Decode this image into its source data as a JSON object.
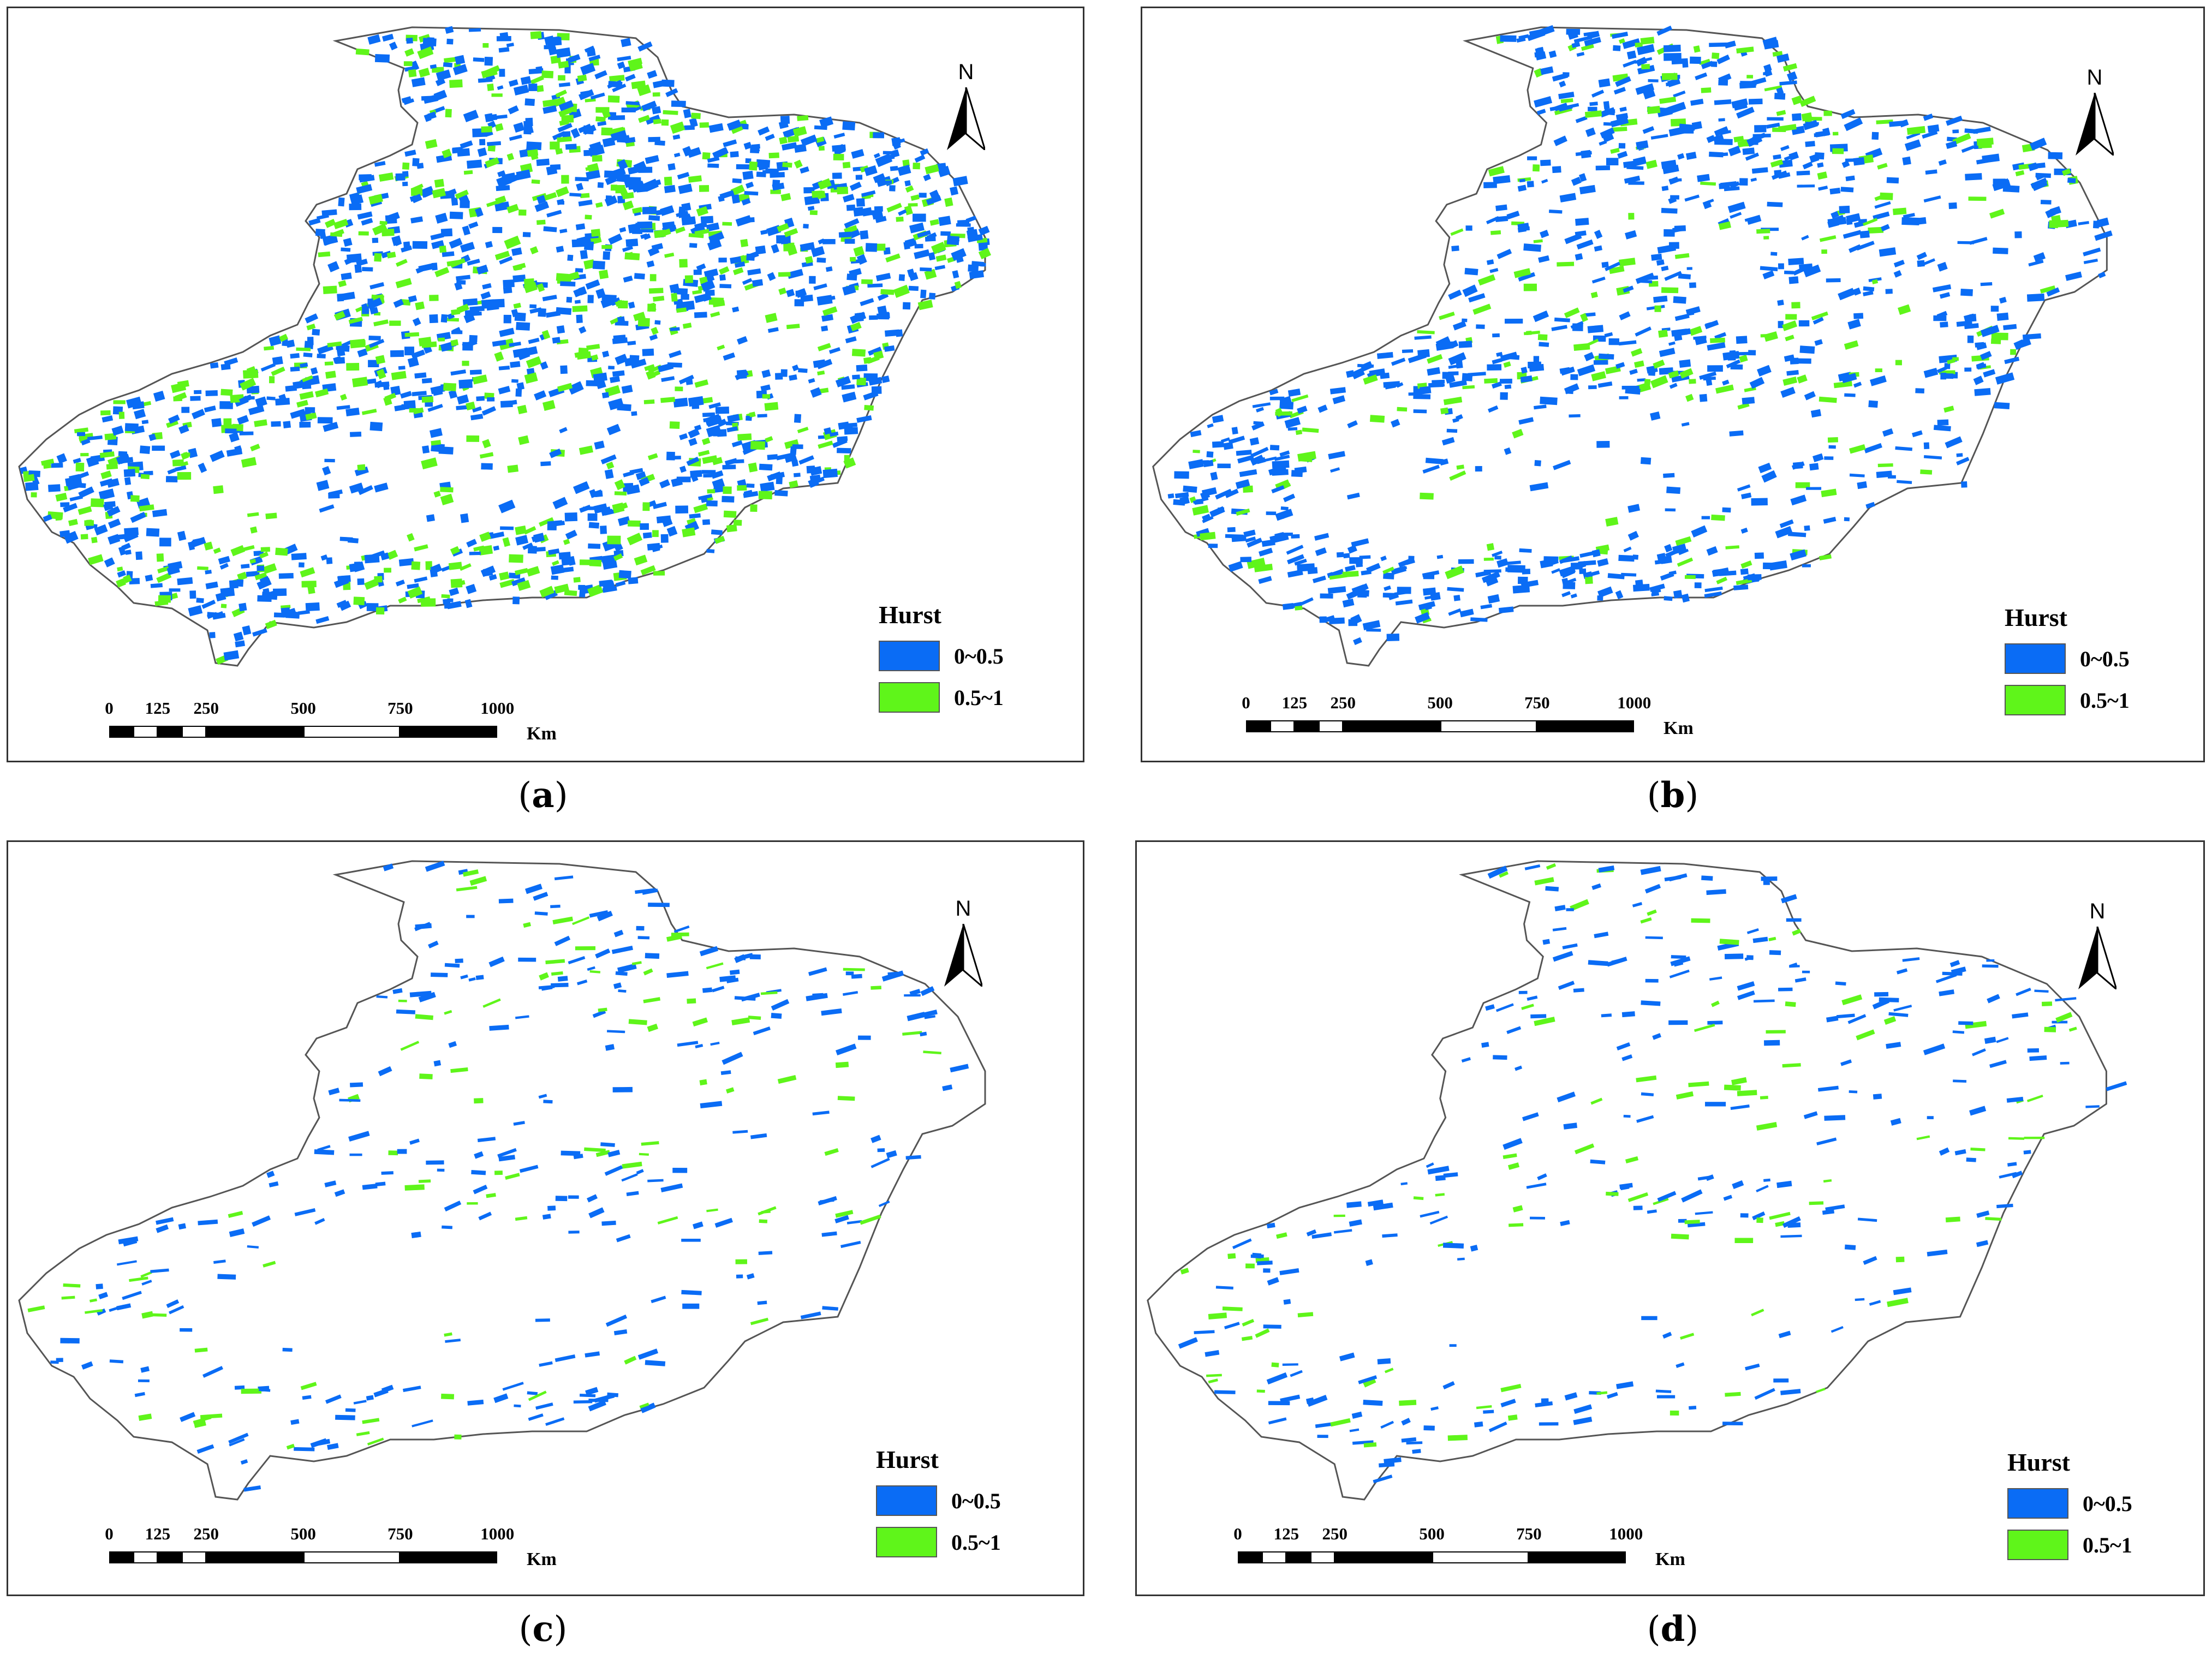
{
  "legend": {
    "title": "Hurst",
    "classes": [
      {
        "label": "0~0.5",
        "color": "#0a6cf5"
      },
      {
        "label": "0.5~1",
        "color": "#5ff51a"
      }
    ]
  },
  "north_arrow": {
    "label": "N"
  },
  "scale_bar": {
    "ticks": [
      "0",
      "125",
      "250",
      "500",
      "750",
      "1000"
    ],
    "unit": "Km"
  },
  "colors": {
    "boundary": "#555555",
    "blue_class": "#0a6cf5",
    "green_class": "#5ff51a"
  },
  "panels": [
    {
      "id": "a",
      "caption": "a",
      "coverage": "dense"
    },
    {
      "id": "b",
      "caption": "b",
      "coverage": "medium"
    },
    {
      "id": "c",
      "caption": "c",
      "coverage": "sparse"
    },
    {
      "id": "d",
      "caption": "d",
      "coverage": "sparse"
    }
  ]
}
